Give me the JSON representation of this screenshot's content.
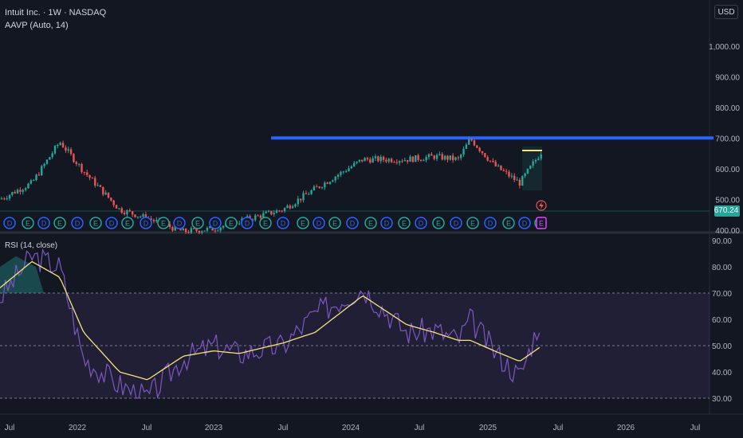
{
  "header": {
    "symbol_line": "Intuit Inc. · 1W · NASDAQ",
    "indicator_line": "AAVP (Auto, 14)",
    "currency": "USD"
  },
  "price_pane": {
    "axis_ticks": [
      "1,000.00",
      "900.00",
      "800.00",
      "700.00",
      "600.00",
      "500.00",
      "400.00"
    ],
    "axis_values": [
      1000,
      900,
      800,
      700,
      600,
      500,
      400
    ],
    "last_price_label": "670.24",
    "last_price": 670.24,
    "last_price_color": "#26a69a",
    "horizontal_level": 750,
    "horizontal_level_color": "#2962ff",
    "up_color": "#26a69a",
    "down_color": "#ef5350",
    "event_badges": [
      "D",
      "E",
      "D",
      "E",
      "D",
      "E",
      "D",
      "E",
      "D",
      "E",
      "D",
      "E",
      "D",
      "E",
      "D",
      "E",
      "D",
      "E",
      "D",
      "E",
      "D",
      "E",
      "D",
      "E",
      "D",
      "E",
      "D",
      "E",
      "D",
      "E",
      "D",
      "E",
      "D",
      "E"
    ]
  },
  "rsi_pane": {
    "title": "RSI (14, close)",
    "axis_ticks": [
      "90.00",
      "80.00",
      "70.00",
      "60.00",
      "50.00",
      "40.00",
      "30.00"
    ],
    "axis_values": [
      90,
      80,
      70,
      60,
      50,
      40,
      30
    ],
    "upper_band": 70,
    "lower_band": 30,
    "middle_band": 50,
    "rsi_color": "#7e57c2",
    "ma_color": "#f5e47a"
  },
  "time_axis": {
    "labels": [
      "Jul",
      "2022",
      "Jul",
      "2023",
      "Jul",
      "2024",
      "Jul",
      "2025",
      "Jul",
      "2026",
      "Jul"
    ]
  },
  "chart_data": {
    "type": "line",
    "title": "Intuit Inc. · 1W · NASDAQ",
    "x": [
      "2021-07",
      "2021-10",
      "2021-11",
      "2022-01",
      "2022-04",
      "2022-07",
      "2022-10",
      "2023-01",
      "2023-04",
      "2023-07",
      "2023-10",
      "2024-01",
      "2024-04",
      "2024-07",
      "2024-10",
      "2024-11",
      "2025-01",
      "2025-03",
      "2025-05"
    ],
    "series": [
      {
        "name": "",
        "values": [
          505,
          560,
          700,
          600,
          470,
          440,
          395,
          405,
          430,
          470,
          540,
          640,
          640,
          650,
          640,
          710,
          620,
          560,
          670
        ]
      }
    ],
    "rsi": {
      "title": "RSI (14, close)",
      "values": [
        68,
        84,
        80,
        45,
        35,
        30,
        45,
        50,
        47,
        50,
        62,
        72,
        55,
        56,
        52,
        60,
        48,
        38,
        62
      ],
      "ma_values": [
        72,
        82,
        76,
        55,
        40,
        37,
        46,
        48,
        47,
        51,
        55,
        69,
        58,
        55,
        52,
        52,
        48,
        44,
        50
      ],
      "ylim": [
        30,
        90
      ]
    },
    "ylim": [
      400,
      1050
    ]
  }
}
